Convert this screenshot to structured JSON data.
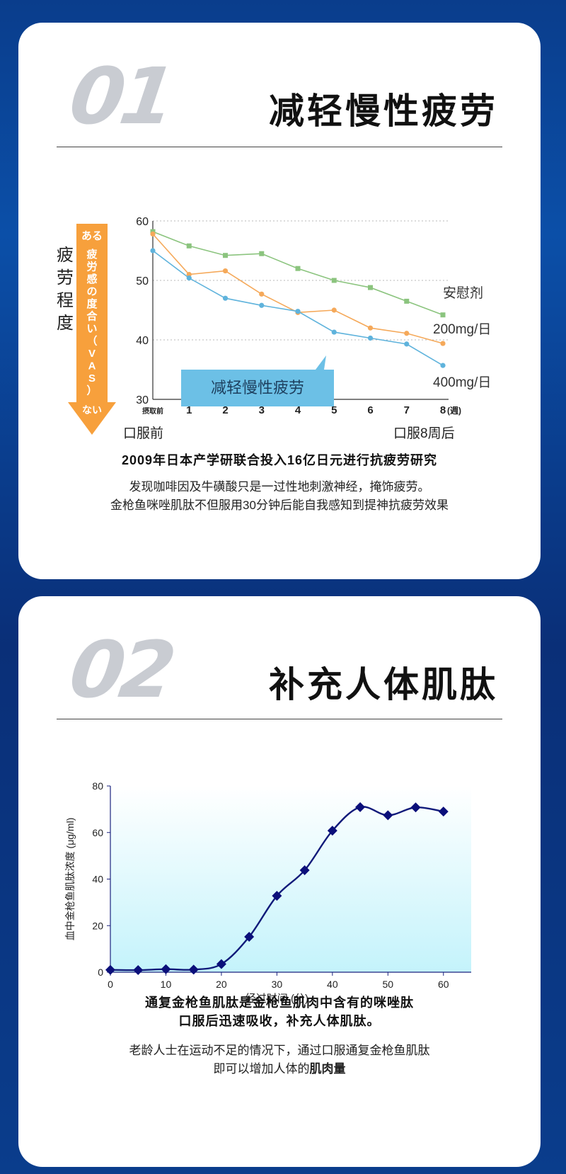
{
  "section1": {
    "number": "01",
    "title": "减轻慢性疲劳",
    "y_axis_title": [
      "疲",
      "劳",
      "程",
      "度"
    ],
    "arrow_top_label": "ある",
    "arrow_middle_label": [
      "疲",
      "労",
      "感",
      "の",
      "度",
      "合",
      "い",
      "（",
      "V",
      "A",
      "S",
      "）"
    ],
    "arrow_bottom_label": "ない",
    "callout": "减轻慢性疲劳",
    "start_label": "口服前",
    "end_label": "口服8周后",
    "caption_bold": "2009年日本产学研联合投入16亿日元进行抗疲劳研究",
    "caption_line1": "发现咖啡因及牛磺酸只是一过性地刺激神经，掩饰疲劳。",
    "caption_line2": "金枪鱼咪唑肌肽不但服用30分钟后能自我感知到提神抗疲劳效果",
    "colors": {
      "placebo": "#8bc47e",
      "dose200": "#f5a95a",
      "dose400": "#5fb3dc",
      "arrow": "#f7a03c",
      "callout_bg": "#6cc0e6"
    }
  },
  "section2": {
    "number": "02",
    "title": "补充人体肌肽",
    "caption_bold_line1": "通复金枪鱼肌肽是金枪鱼肌肉中含有的咪唑肽",
    "caption_bold_line2": "口服后迅速吸收，补充人体肌肽。",
    "caption_line1": "老龄人士在运动不足的情况下，通过口服通复金枪鱼肌肽",
    "caption_line2_prefix": "即可以增加人体的",
    "caption_line2_bold": "肌肉量",
    "colors": {
      "line": "#101a7a",
      "marker": "#0b0f7a",
      "fill_top": "#ffffff",
      "fill_bottom": "#c4f3fb"
    }
  },
  "chart_data": [
    {
      "type": "line",
      "x_tick_labels": [
        "摂取前",
        "1",
        "2",
        "3",
        "4",
        "5",
        "6",
        "7",
        "8"
      ],
      "x_unit": "(週)",
      "x": [
        0,
        1,
        2,
        3,
        4,
        5,
        6,
        7,
        8
      ],
      "ylim": [
        30,
        60
      ],
      "yticks": [
        "30",
        "40",
        "50",
        "60"
      ],
      "grid": "dotted horizontal",
      "series": [
        {
          "name": "安慰剂",
          "values": [
            58.2,
            55.8,
            54.2,
            54.5,
            52.0,
            50.0,
            48.8,
            46.5,
            44.2
          ]
        },
        {
          "name": "200mg/日",
          "values": [
            57.8,
            51.0,
            51.6,
            47.7,
            44.6,
            45.0,
            42.0,
            41.1,
            39.4
          ]
        },
        {
          "name": "400mg/日",
          "values": [
            55.0,
            50.4,
            47.0,
            45.8,
            44.8,
            41.3,
            40.3,
            39.3,
            35.7
          ]
        }
      ]
    },
    {
      "type": "line",
      "xlabel": "经过时间 (分)",
      "ylabel": "血中金枪鱼肌肽浓度 (μg/ml)",
      "xlim": [
        0,
        65
      ],
      "ylim": [
        0,
        80
      ],
      "xticks": [
        "0",
        "10",
        "20",
        "30",
        "40",
        "50",
        "60"
      ],
      "yticks": [
        "0",
        "20",
        "40",
        "60",
        "80"
      ],
      "x": [
        0,
        5,
        10,
        15,
        20,
        25,
        30,
        35,
        40,
        45,
        50,
        55,
        60
      ],
      "values": [
        1.0,
        0.9,
        1.3,
        1.1,
        3.5,
        15.2,
        32.8,
        43.8,
        60.8,
        70.9,
        67.4,
        70.8,
        69.0
      ]
    }
  ]
}
